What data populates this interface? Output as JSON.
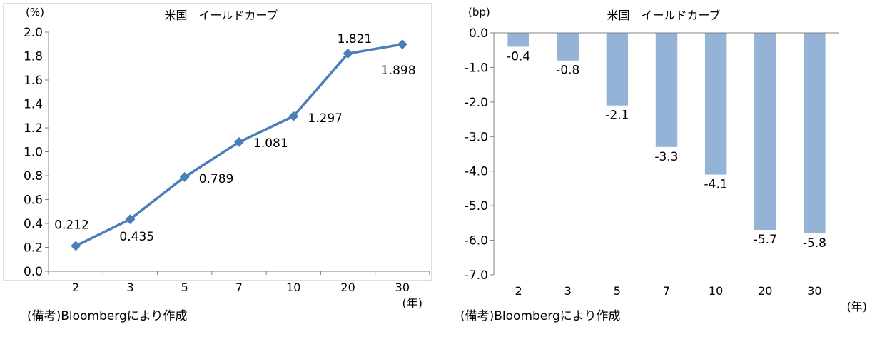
{
  "chart_data": [
    {
      "type": "line",
      "title": "米国　イールドカーブ",
      "ylabel": "(%)",
      "xlabel": "(年)",
      "categories": [
        "2",
        "3",
        "5",
        "7",
        "10",
        "20",
        "30"
      ],
      "values": [
        0.212,
        0.435,
        0.789,
        1.081,
        1.297,
        1.821,
        1.898
      ],
      "data_labels": [
        "0.212",
        "0.435",
        "0.789",
        "1.081",
        "1.297",
        "1.821",
        "1.898"
      ],
      "ylim": [
        0,
        2.0
      ],
      "yticks": [
        0,
        0.2,
        0.4,
        0.6,
        0.8,
        1.0,
        1.2,
        1.4,
        1.6,
        1.8,
        2.0
      ],
      "ytick_labels": [
        "0.0",
        "0.2",
        "0.4",
        "0.6",
        "0.8",
        "1.0",
        "1.2",
        "1.4",
        "1.6",
        "1.8",
        "2.0"
      ],
      "grid": false,
      "color": "#4a7ebb",
      "source": "(備考)Bloombergにより作成"
    },
    {
      "type": "bar",
      "title": "米国　イールドカーブ",
      "ylabel": "(bp)",
      "xlabel": "(年)",
      "categories": [
        "2",
        "3",
        "5",
        "7",
        "10",
        "20",
        "30"
      ],
      "values": [
        -0.4,
        -0.8,
        -2.1,
        -3.3,
        -4.1,
        -5.7,
        -5.8
      ],
      "data_labels": [
        "-0.4",
        "-0.8",
        "-2.1",
        "-3.3",
        "-4.1",
        "-5.7",
        "-5.8"
      ],
      "ylim": [
        -7.0,
        0.0
      ],
      "yticks": [
        0,
        -1,
        -2,
        -3,
        -4,
        -5,
        -6,
        -7
      ],
      "ytick_labels": [
        "0.0",
        "-1.0",
        "-2.0",
        "-3.0",
        "-4.0",
        "-5.0",
        "-6.0",
        "-7.0"
      ],
      "grid": false,
      "color": "#95b3d7",
      "source": "(備考)Bloombergにより作成"
    }
  ]
}
